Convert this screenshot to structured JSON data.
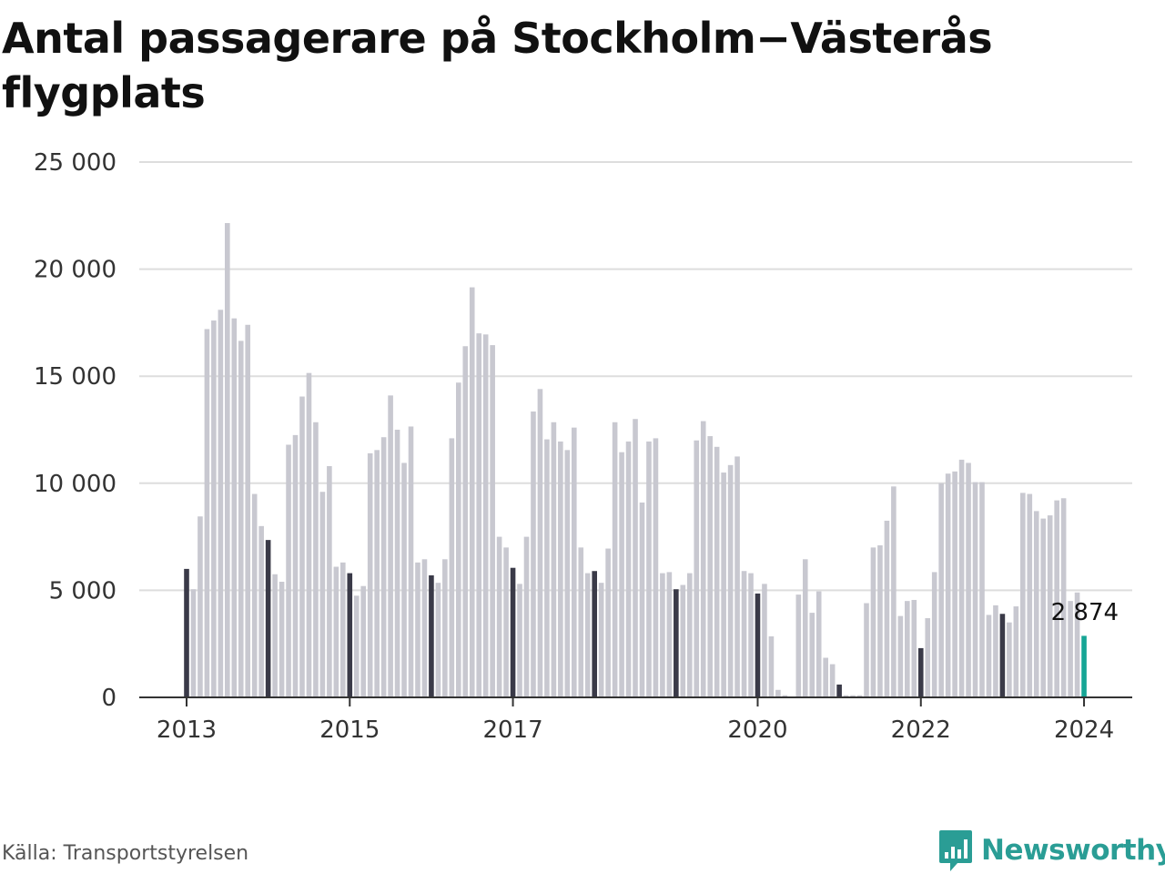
{
  "title": "Antal passagerare på Stockholm−Västerås flygplats",
  "source": "Källa: Transportstyrelsen",
  "brand": {
    "name": "Newsworthy",
    "color": "#2a9d95",
    "icon": "bar-chart-speech-bubble-icon"
  },
  "colors": {
    "bar": "#c8c8d0",
    "january_bar": "#3a3a48",
    "latest_bar": "#16a595",
    "grid": "#dddddd",
    "axis": "#333333"
  },
  "chart_data": {
    "type": "bar",
    "title": "Antal passagerare på Stockholm−Västerås flygplats",
    "xlabel": "",
    "ylabel": "",
    "start": "2013-01",
    "frequency": "monthly",
    "ylim": [
      0,
      25000
    ],
    "yticks": [
      0,
      5000,
      10000,
      15000,
      20000,
      25000
    ],
    "ytick_labels": [
      "0",
      "5 000",
      "10 000",
      "15 000",
      "20 000",
      "25 000"
    ],
    "xticks": [
      "2013",
      "2015",
      "2017",
      "2020",
      "2022",
      "2024"
    ],
    "grid": true,
    "highlight": "January of each year in dark; latest month in teal",
    "last_value_label": "2 874",
    "values": [
      6000,
      5050,
      8450,
      17200,
      17600,
      18100,
      22150,
      17700,
      16650,
      17400,
      9500,
      8000,
      7350,
      5750,
      5400,
      11800,
      12250,
      14050,
      15150,
      12850,
      9600,
      10800,
      6100,
      6300,
      5800,
      4750,
      5200,
      11400,
      11550,
      12150,
      14100,
      12500,
      10950,
      12650,
      6300,
      6450,
      5700,
      5350,
      6450,
      12100,
      14700,
      16400,
      19150,
      17000,
      16950,
      16450,
      7500,
      7000,
      6050,
      5300,
      7500,
      13350,
      14400,
      12050,
      12850,
      11950,
      11550,
      12600,
      7000,
      5800,
      5900,
      5350,
      6950,
      12850,
      11450,
      11950,
      13000,
      9100,
      11950,
      12100,
      5800,
      5850,
      5050,
      5250,
      5800,
      12000,
      12900,
      12200,
      11700,
      10500,
      10850,
      11250,
      5900,
      5800,
      4850,
      5300,
      2850,
      350,
      100,
      0,
      4800,
      6450,
      3950,
      4950,
      1850,
      1550,
      600,
      100,
      100,
      100,
      4400,
      7000,
      7100,
      8250,
      9850,
      3800,
      4500,
      4550,
      2300,
      3700,
      5850,
      10000,
      10450,
      10550,
      11100,
      10950,
      10050,
      10050,
      3850,
      4300,
      3900,
      3500,
      4250,
      9550,
      9500,
      8700,
      8350,
      8500,
      9200,
      9300,
      4500,
      4900,
      2874
    ]
  }
}
